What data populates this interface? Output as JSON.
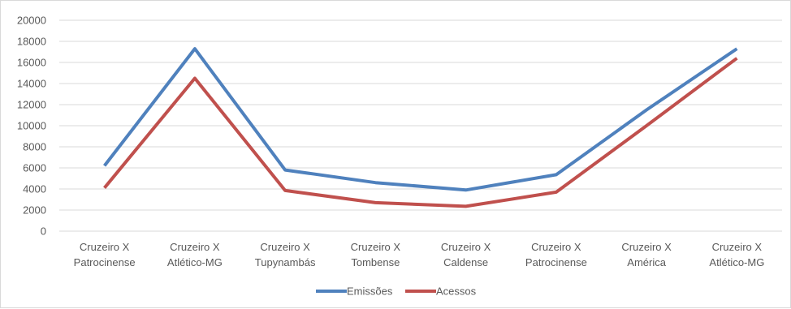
{
  "chart_data": {
    "type": "line",
    "title": "",
    "xlabel": "",
    "ylabel": "",
    "categories": [
      [
        "Cruzeiro X",
        "Patrocinense"
      ],
      [
        "Cruzeiro X",
        "Atlético-MG"
      ],
      [
        "Cruzeiro X",
        "Tupynambás"
      ],
      [
        "Cruzeiro X",
        "Tombense"
      ],
      [
        "Cruzeiro X",
        "Caldense"
      ],
      [
        "Cruzeiro X",
        "Patrocinense"
      ],
      [
        "Cruzeiro X",
        "América"
      ],
      [
        "Cruzeiro X",
        "Atlético-MG"
      ]
    ],
    "series": [
      {
        "name": "Emissões",
        "color": "#4f81bd",
        "values": [
          6200,
          17300,
          5800,
          4600,
          3900,
          5350,
          11500,
          17300
        ]
      },
      {
        "name": "Acessos",
        "color": "#c0504d",
        "values": [
          4100,
          14500,
          3850,
          2700,
          2350,
          3700,
          10000,
          16400
        ]
      }
    ],
    "ylim": [
      0,
      20000
    ],
    "yticks": [
      "0",
      "2000",
      "4000",
      "6000",
      "8000",
      "10000",
      "12000",
      "14000",
      "16000",
      "18000",
      "20000"
    ],
    "grid": true,
    "legend": "bottom"
  }
}
